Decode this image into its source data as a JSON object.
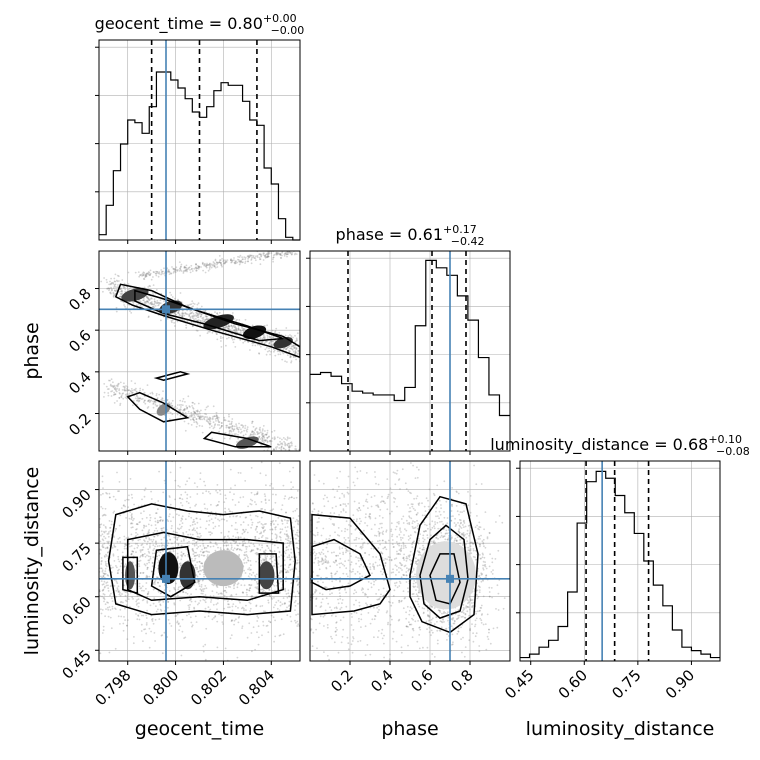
{
  "chart_data": {
    "type": "corner",
    "parameters": [
      "geocent_time",
      "phase",
      "luminosity_distance"
    ],
    "truths": [
      0.7996,
      0.7,
      0.65
    ],
    "truth_color": "#4682b4",
    "diagonal": [
      {
        "param": "geocent_time",
        "title_main": "geocent_time = 0.80",
        "title_sup": "+0.00",
        "title_sub": "−0.00",
        "range": [
          0.7968,
          0.8052
        ],
        "quantiles": [
          0.799,
          0.801,
          0.8034
        ],
        "hist_values": [
          2,
          13,
          26,
          36,
          45,
          44,
          40,
          50,
          63,
          63,
          60,
          57,
          53,
          48,
          46,
          50,
          56,
          59,
          58,
          58,
          52,
          45,
          43,
          27,
          21,
          8,
          1,
          0
        ],
        "hist_max": 75,
        "tick_labels": [
          "0.798",
          "0.800",
          "0.802",
          "0.804"
        ],
        "tick_values": [
          0.798,
          0.8,
          0.802,
          0.804
        ],
        "xlabel": "geocent_time"
      },
      {
        "param": "phase",
        "title_main": "phase = 0.61",
        "title_sup": "+0.17",
        "title_sub": "−0.42",
        "range": [
          0.0,
          1.0
        ],
        "quantiles": [
          0.19,
          0.61,
          0.78
        ],
        "hist_values": [
          41,
          42,
          40,
          36,
          32,
          31,
          30,
          30,
          27,
          34,
          67,
          102,
          98,
          94,
          83,
          70,
          50,
          30,
          19
        ],
        "hist_max": 107,
        "tick_labels": [
          "0.2",
          "0.4",
          "0.6",
          "0.8"
        ],
        "tick_values": [
          0.2,
          0.4,
          0.6,
          0.8
        ],
        "xlabel": "phase"
      },
      {
        "param": "luminosity_distance",
        "title_main": "luminosity_distance = 0.68",
        "title_sup": "+0.10",
        "title_sub": "−0.08",
        "range": [
          0.42,
          0.98
        ],
        "quantiles": [
          0.605,
          0.685,
          0.78
        ],
        "hist_values": [
          1,
          2,
          4,
          6,
          10,
          20,
          40,
          52,
          55,
          53,
          48,
          43,
          37,
          29,
          22,
          16,
          9,
          4,
          3,
          2,
          1
        ],
        "hist_max": 58,
        "tick_labels": [
          "0.45",
          "0.60",
          "0.75",
          "0.90"
        ],
        "tick_values": [
          0.45,
          0.6,
          0.75,
          0.9
        ],
        "xlabel": "luminosity_distance"
      }
    ],
    "ylabels": [
      "phase",
      "luminosity_distance"
    ],
    "ytick_labels": {
      "phase": [
        "0.2",
        "0.4",
        "0.6",
        "0.8"
      ],
      "luminosity_distance": [
        "0.45",
        "0.60",
        "0.75",
        "0.90"
      ]
    },
    "grid": true
  }
}
